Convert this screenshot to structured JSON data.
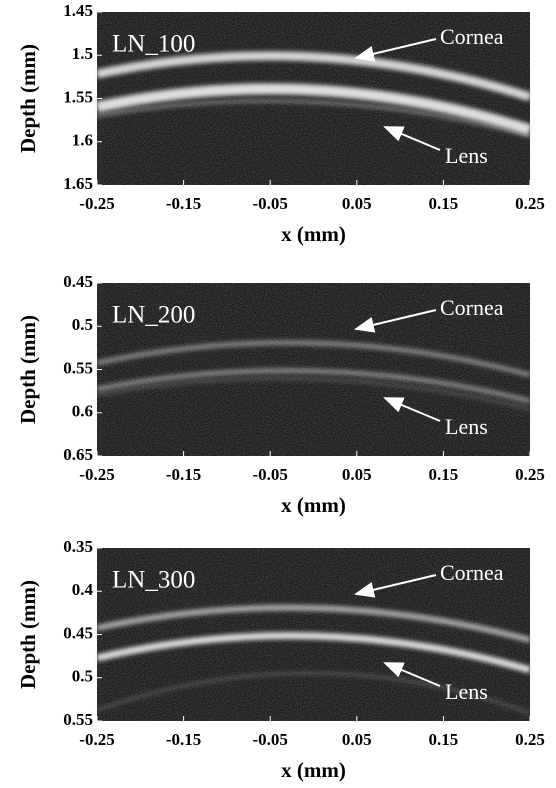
{
  "chart_data": [
    {
      "type": "image",
      "label": "LN_100",
      "xlabel": "x (mm)",
      "ylabel": "Depth (mm)",
      "xlim": [
        -0.25,
        0.25
      ],
      "xticks": [
        -0.25,
        -0.15,
        -0.05,
        0.05,
        0.15,
        0.25
      ],
      "ylim": [
        1.45,
        1.65
      ],
      "yticks": [
        1.45,
        1.5,
        1.55,
        1.6,
        1.65
      ],
      "annotations": [
        "Cornea",
        "Lens"
      ]
    },
    {
      "type": "image",
      "label": "LN_200",
      "xlabel": "x (mm)",
      "ylabel": "Depth (mm)",
      "xlim": [
        -0.25,
        0.25
      ],
      "xticks": [
        -0.25,
        -0.15,
        -0.05,
        0.05,
        0.15,
        0.25
      ],
      "ylim": [
        0.45,
        0.65
      ],
      "yticks": [
        0.45,
        0.5,
        0.55,
        0.6,
        0.65
      ],
      "annotations": [
        "Cornea",
        "Lens"
      ]
    },
    {
      "type": "image",
      "label": "LN_300",
      "xlabel": "x (mm)",
      "ylabel": "Depth (mm)",
      "xlim": [
        -0.25,
        0.25
      ],
      "xticks": [
        -0.25,
        -0.15,
        -0.05,
        0.05,
        0.15,
        0.25
      ],
      "ylim": [
        0.35,
        0.55
      ],
      "yticks": [
        0.35,
        0.4,
        0.45,
        0.5,
        0.55
      ],
      "annotations": [
        "Cornea",
        "Lens"
      ]
    }
  ]
}
